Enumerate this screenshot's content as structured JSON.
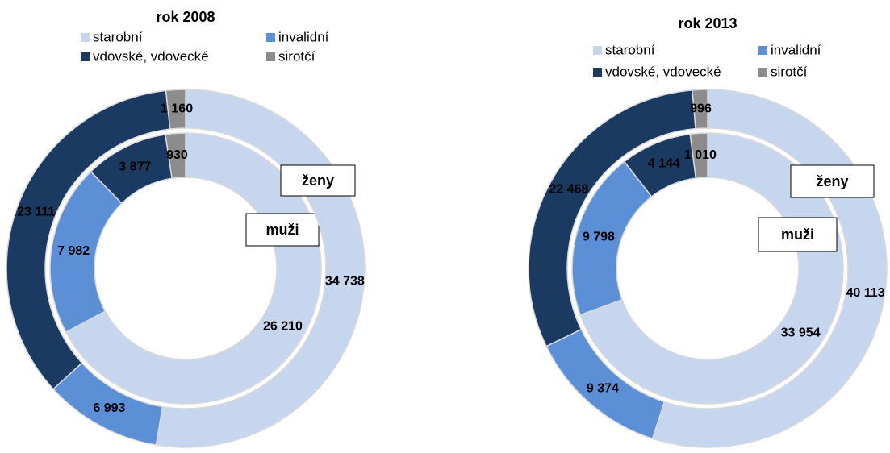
{
  "chart_data": [
    {
      "type": "donut",
      "title": "rok 2008",
      "categories": [
        "starobní",
        "invalidní",
        "vdovské, vdovecké",
        "sirotčí"
      ],
      "colors": [
        "#c6d6ee",
        "#5b8fd6",
        "#1b3a62",
        "#8c8c8c"
      ],
      "series": [
        {
          "name": "muži",
          "values": [
            26210,
            7982,
            3877,
            930
          ],
          "value_labels": [
            "26 210",
            "7 982",
            "3 877",
            "930"
          ]
        },
        {
          "name": "ženy",
          "values": [
            34738,
            6993,
            23111,
            1160
          ],
          "value_labels": [
            "34 738",
            "6 993",
            "23 111",
            "1 160"
          ]
        }
      ]
    },
    {
      "type": "donut",
      "title": "rok 2013",
      "categories": [
        "starobní",
        "invalidní",
        "vdovské, vdovecké",
        "sirotčí"
      ],
      "colors": [
        "#c6d6ee",
        "#5b8fd6",
        "#1b3a62",
        "#8c8c8c"
      ],
      "series": [
        {
          "name": "muži",
          "values": [
            33954,
            9798,
            4144,
            1010
          ],
          "value_labels": [
            "33 954",
            "9 798",
            "4 144",
            "1 010"
          ]
        },
        {
          "name": "ženy",
          "values": [
            40113,
            9374,
            22468,
            996
          ],
          "value_labels": [
            "40 113",
            "9 374",
            "22 468",
            "996"
          ]
        }
      ]
    }
  ]
}
